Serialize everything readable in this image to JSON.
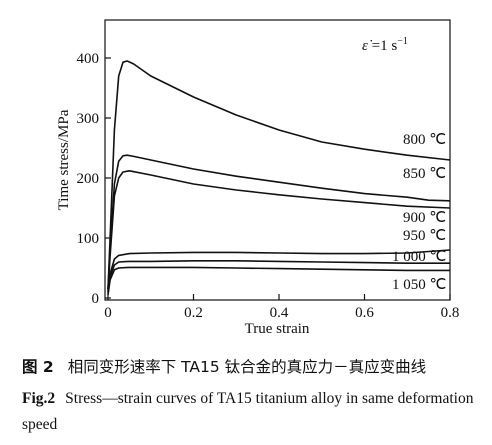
{
  "chart_data": {
    "type": "line",
    "title": "",
    "annotation": "ε̇ =1 s⁻¹",
    "annotation_parts": {
      "symbol": "ε̇",
      "value": "=1 s",
      "exp": "−1"
    },
    "xlabel": "True strain",
    "ylabel": "Time stress/MPa",
    "xlim": [
      0,
      0.8
    ],
    "ylim": [
      0,
      420
    ],
    "xticks": [
      0,
      0.2,
      0.4,
      0.6,
      0.8
    ],
    "xtick_labels": [
      "0",
      "0.2",
      "0.4",
      "0.6",
      "0.8"
    ],
    "yticks": [
      0,
      100,
      200,
      300,
      400
    ],
    "ytick_labels": [
      "0",
      "100",
      "200",
      "300",
      "400"
    ],
    "grid": false,
    "series": [
      {
        "name": "800 ℃",
        "x": [
          0,
          0.005,
          0.015,
          0.025,
          0.035,
          0.045,
          0.06,
          0.1,
          0.2,
          0.3,
          0.4,
          0.5,
          0.6,
          0.7,
          0.8
        ],
        "y": [
          15,
          100,
          280,
          370,
          393,
          395,
          390,
          370,
          335,
          305,
          280,
          260,
          248,
          238,
          230
        ]
      },
      {
        "name": "850 ℃",
        "x": [
          0,
          0.005,
          0.015,
          0.025,
          0.035,
          0.045,
          0.06,
          0.1,
          0.2,
          0.3,
          0.4,
          0.5,
          0.6,
          0.7,
          0.75,
          0.8
        ],
        "y": [
          15,
          80,
          190,
          228,
          237,
          238,
          236,
          230,
          215,
          203,
          193,
          183,
          174,
          168,
          163,
          162
        ]
      },
      {
        "name": "900 ℃",
        "x": [
          0,
          0.005,
          0.015,
          0.025,
          0.035,
          0.05,
          0.1,
          0.2,
          0.3,
          0.4,
          0.5,
          0.6,
          0.7,
          0.8
        ],
        "y": [
          12,
          70,
          170,
          200,
          210,
          212,
          205,
          190,
          180,
          172,
          165,
          159,
          153,
          150
        ]
      },
      {
        "name": "950 ℃",
        "x": [
          0,
          0.005,
          0.015,
          0.025,
          0.05,
          0.1,
          0.2,
          0.3,
          0.4,
          0.5,
          0.6,
          0.7,
          0.8
        ],
        "y": [
          10,
          40,
          65,
          71,
          74,
          75,
          76,
          76,
          75,
          74,
          74,
          75,
          80
        ]
      },
      {
        "name": "1 000 ℃",
        "x": [
          0,
          0.005,
          0.015,
          0.025,
          0.05,
          0.1,
          0.2,
          0.3,
          0.4,
          0.5,
          0.6,
          0.7,
          0.8
        ],
        "y": [
          8,
          35,
          55,
          60,
          61,
          61,
          62,
          62,
          61,
          60,
          59,
          58,
          58
        ]
      },
      {
        "name": "1 050 ℃",
        "x": [
          0,
          0.005,
          0.015,
          0.025,
          0.05,
          0.1,
          0.2,
          0.3,
          0.4,
          0.5,
          0.6,
          0.7,
          0.8
        ],
        "y": [
          5,
          30,
          47,
          50,
          51,
          51,
          51,
          50,
          49,
          48,
          47,
          46,
          46
        ]
      }
    ]
  },
  "caption": {
    "cn_label": "图 2",
    "cn_text": "相同变形速率下 TA15 钛合金的真应力－真应变曲线",
    "en_label": "Fig.2",
    "en_text": "Stress—strain curves of TA15 titanium alloy in same deformation speed"
  }
}
